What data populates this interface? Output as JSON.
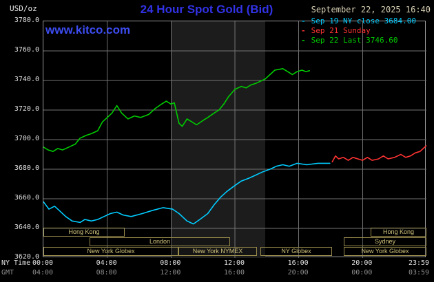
{
  "header": {
    "unit_label": "USD/oz",
    "title": "24 Hour Spot Gold (Bid)",
    "datetime": "September 22, 2025 16:40",
    "watermark": "www.kitco.com",
    "legend_marker": "-",
    "legend": [
      {
        "label": "Sep 19 NY close 3684.00",
        "color": "#00ccff"
      },
      {
        "label": "Sep 21 Sunday",
        "color": "#ff3333"
      },
      {
        "label": "Sep 22 Last 3746.60",
        "color": "#00cc00"
      }
    ]
  },
  "axes": {
    "y_ticks": [
      "3780.0",
      "3760.0",
      "3740.0",
      "3720.0",
      "3700.0",
      "3680.0",
      "3660.0",
      "3640.0",
      "3620.0"
    ],
    "ny_time_label": "NY Time",
    "gmt_label": "GMT",
    "ny_ticks": [
      "00:00",
      "04:00",
      "08:00",
      "12:00",
      "16:00",
      "20:00",
      "23:59"
    ],
    "gmt_ticks": [
      "04:00",
      "08:00",
      "12:00",
      "16:00",
      "20:00",
      "00:00",
      "03:59"
    ]
  },
  "chart_data": {
    "type": "line",
    "title": "24 Hour Spot Gold (Bid)",
    "ylabel": "USD/oz",
    "x_unit": "NY time (hours)",
    "x_range_hours": [
      0,
      24
    ],
    "x_step": 4,
    "y_range": [
      3620,
      3780
    ],
    "y_step": 20,
    "grid": true,
    "grid_color": "#737373",
    "legend_position": "top-right",
    "shade": {
      "hours": [
        8,
        13.9
      ],
      "color": "#1c1c1c"
    },
    "series": [
      {
        "id": "sep19",
        "name": "Sep 19 NY close",
        "color": "#00ccff",
        "close": 3684.0,
        "points": [
          [
            0,
            3658
          ],
          [
            0.35,
            3653
          ],
          [
            0.7,
            3655
          ],
          [
            1.0,
            3652
          ],
          [
            1.4,
            3648
          ],
          [
            1.8,
            3645
          ],
          [
            2.3,
            3644
          ],
          [
            2.6,
            3646
          ],
          [
            3.0,
            3645
          ],
          [
            3.4,
            3646
          ],
          [
            3.8,
            3648
          ],
          [
            4.2,
            3650
          ],
          [
            4.6,
            3651
          ],
          [
            5.0,
            3649
          ],
          [
            5.5,
            3648
          ],
          [
            6.2,
            3650
          ],
          [
            6.8,
            3652
          ],
          [
            7.5,
            3654
          ],
          [
            8.1,
            3653
          ],
          [
            8.5,
            3650
          ],
          [
            9.0,
            3645
          ],
          [
            9.4,
            3643
          ],
          [
            9.8,
            3646
          ],
          [
            10.3,
            3650
          ],
          [
            10.7,
            3656
          ],
          [
            11.1,
            3661
          ],
          [
            11.5,
            3665
          ],
          [
            12.0,
            3669
          ],
          [
            12.4,
            3672
          ],
          [
            12.9,
            3674
          ],
          [
            13.3,
            3676
          ],
          [
            13.7,
            3678
          ],
          [
            14.2,
            3680
          ],
          [
            14.6,
            3682
          ],
          [
            15.0,
            3683
          ],
          [
            15.4,
            3682
          ],
          [
            15.9,
            3684
          ],
          [
            16.5,
            3683
          ],
          [
            17.2,
            3684
          ],
          [
            17.95,
            3684
          ]
        ]
      },
      {
        "id": "sep21",
        "name": "Sep 21 Sunday",
        "color": "#ff3333",
        "points": [
          [
            18.1,
            3685
          ],
          [
            18.3,
            3689
          ],
          [
            18.5,
            3687
          ],
          [
            18.8,
            3688
          ],
          [
            19.1,
            3686
          ],
          [
            19.4,
            3688
          ],
          [
            19.7,
            3687
          ],
          [
            20.0,
            3686
          ],
          [
            20.3,
            3688
          ],
          [
            20.6,
            3686
          ],
          [
            21.0,
            3687
          ],
          [
            21.3,
            3689
          ],
          [
            21.6,
            3687
          ],
          [
            22.0,
            3688
          ],
          [
            22.4,
            3690
          ],
          [
            22.7,
            3688
          ],
          [
            23.0,
            3689
          ],
          [
            23.3,
            3691
          ],
          [
            23.6,
            3692
          ],
          [
            23.8,
            3694
          ],
          [
            24.0,
            3696
          ]
        ]
      },
      {
        "id": "sep22",
        "name": "Sep 22",
        "color": "#00cc00",
        "last": 3746.6,
        "points": [
          [
            0,
            3695
          ],
          [
            0.3,
            3693
          ],
          [
            0.6,
            3692
          ],
          [
            0.9,
            3694
          ],
          [
            1.2,
            3693
          ],
          [
            1.6,
            3695
          ],
          [
            2.0,
            3697
          ],
          [
            2.3,
            3701
          ],
          [
            2.7,
            3703
          ],
          [
            3.0,
            3704
          ],
          [
            3.4,
            3706
          ],
          [
            3.7,
            3712
          ],
          [
            4.0,
            3715
          ],
          [
            4.3,
            3718
          ],
          [
            4.6,
            3723
          ],
          [
            4.9,
            3718
          ],
          [
            5.3,
            3714
          ],
          [
            5.7,
            3716
          ],
          [
            6.1,
            3715
          ],
          [
            6.6,
            3717
          ],
          [
            7.0,
            3721
          ],
          [
            7.4,
            3724
          ],
          [
            7.7,
            3726
          ],
          [
            8.0,
            3724
          ],
          [
            8.2,
            3725
          ],
          [
            8.5,
            3711
          ],
          [
            8.7,
            3709
          ],
          [
            9.0,
            3714
          ],
          [
            9.3,
            3712
          ],
          [
            9.6,
            3710
          ],
          [
            10.0,
            3713
          ],
          [
            10.3,
            3715
          ],
          [
            10.7,
            3718
          ],
          [
            11.0,
            3720
          ],
          [
            11.3,
            3724
          ],
          [
            11.6,
            3729
          ],
          [
            12.0,
            3734
          ],
          [
            12.4,
            3736
          ],
          [
            12.7,
            3735
          ],
          [
            13.0,
            3737
          ],
          [
            13.3,
            3738
          ],
          [
            13.7,
            3740
          ],
          [
            13.9,
            3741
          ],
          [
            14.2,
            3744
          ],
          [
            14.5,
            3747
          ],
          [
            15.0,
            3748
          ],
          [
            15.3,
            3746
          ],
          [
            15.6,
            3744
          ],
          [
            15.9,
            3746
          ],
          [
            16.2,
            3747
          ],
          [
            16.45,
            3746
          ],
          [
            16.67,
            3746.6
          ]
        ]
      }
    ],
    "sessions": [
      {
        "row": 1,
        "label": "Hong Kong",
        "start": 0,
        "end": 5.1
      },
      {
        "row": 1,
        "label": "Hong Kong",
        "start": 20.5,
        "end": 24
      },
      {
        "row": 2,
        "label": "London",
        "start": 2.9,
        "end": 11.7
      },
      {
        "row": 2,
        "label": "Sydney",
        "start": 18.8,
        "end": 24
      },
      {
        "row": 3,
        "label": "New York Globex",
        "start": 0,
        "end": 8.45
      },
      {
        "row": 3,
        "label": "New York NYMEX",
        "start": 8.45,
        "end": 13.35
      },
      {
        "row": 3,
        "label": "NY Globex",
        "start": 13.6,
        "end": 18.1
      },
      {
        "row": 3,
        "label": "New York Globex",
        "start": 18.8,
        "end": 24
      }
    ]
  }
}
